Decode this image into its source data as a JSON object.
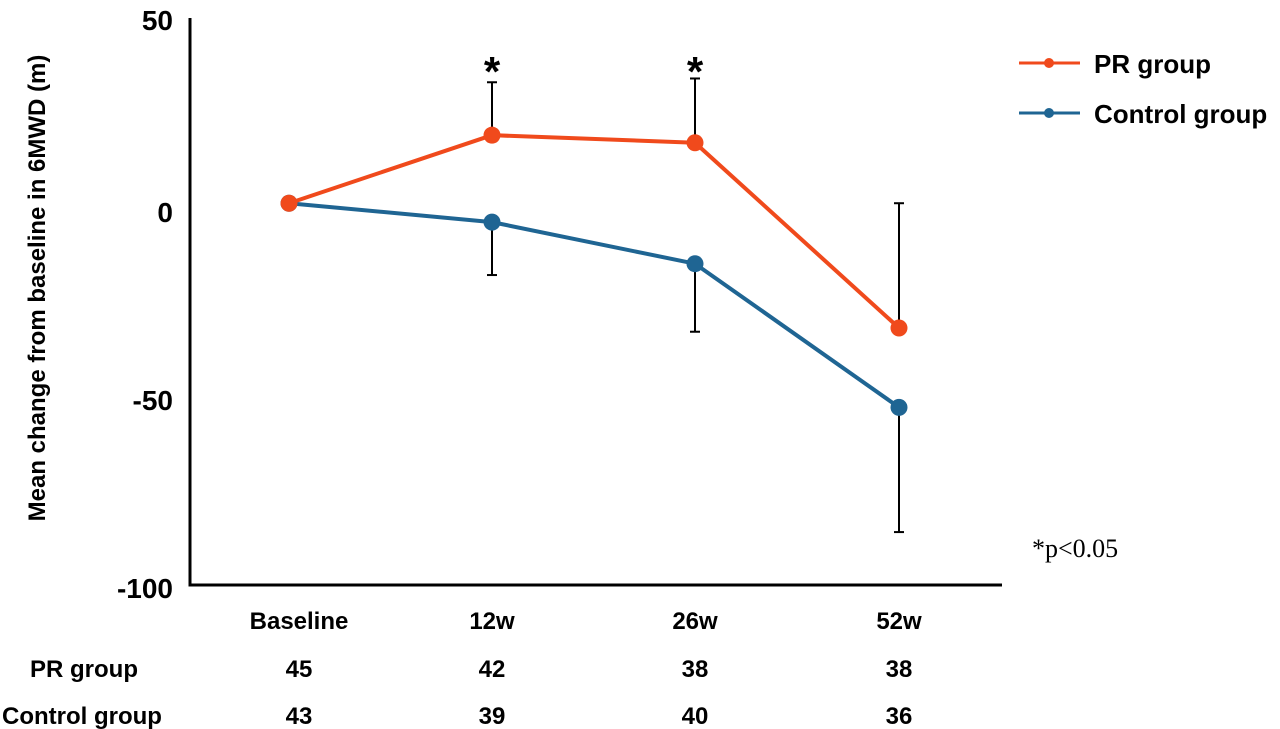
{
  "chart_data": {
    "type": "line",
    "title": "",
    "xlabel": "",
    "ylabel": "Mean change from baseline in 6MWD (m)",
    "categories": [
      "Baseline",
      "12w",
      "26w",
      "52w"
    ],
    "ylim": [
      -100,
      50
    ],
    "yticks": [
      "50",
      "0",
      "-50",
      "-100"
    ],
    "grid": false,
    "legend_position": "top-right",
    "series": [
      {
        "name": "PR group",
        "color": "#f04a1c",
        "values": [
          1,
          19,
          17,
          -32
        ],
        "error_upper": [
          null,
          33,
          34,
          1
        ],
        "error_lower": [
          null,
          null,
          null,
          null
        ]
      },
      {
        "name": "Control group",
        "color": "#1f6593",
        "values": [
          1,
          -4,
          -15,
          -53
        ],
        "error_upper": [
          null,
          null,
          null,
          null
        ],
        "error_lower": [
          null,
          -18,
          -33,
          -86
        ]
      }
    ],
    "significance": [
      {
        "category": "12w",
        "mark": "*"
      },
      {
        "category": "26w",
        "mark": "*"
      }
    ],
    "footnote": "*p<0.05",
    "n_table": [
      {
        "label": "PR group",
        "values": [
          "45",
          "42",
          "38",
          "38"
        ]
      },
      {
        "label": "Control group",
        "values": [
          "43",
          "39",
          "40",
          "36"
        ]
      }
    ]
  }
}
